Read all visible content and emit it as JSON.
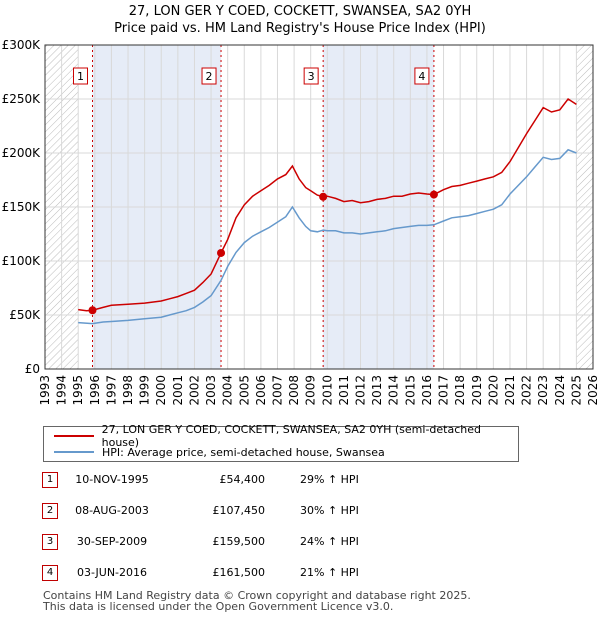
{
  "title_line1": "27, LON GER Y COED, COCKETT, SWANSEA, SA2 0YH",
  "title_line2": "Price paid vs. HM Land Registry's House Price Index (HPI)",
  "legend": {
    "property": "27, LON GER Y COED, COCKETT, SWANSEA, SA2 0YH (semi-detached house)",
    "hpi": "HPI: Average price, semi-detached house, Swansea"
  },
  "colors": {
    "property": "#cc0000",
    "hpi": "#6699cc",
    "sale_marker": "#cc0000",
    "shade": "#e6ecf7",
    "grid": "#d9d9d9"
  },
  "sales": [
    {
      "num": "1",
      "date": "10-NOV-1995",
      "price": "£54,400",
      "delta": "29% ↑ HPI"
    },
    {
      "num": "2",
      "date": "08-AUG-2003",
      "price": "£107,450",
      "delta": "30% ↑ HPI"
    },
    {
      "num": "3",
      "date": "30-SEP-2009",
      "price": "£159,500",
      "delta": "24% ↑ HPI"
    },
    {
      "num": "4",
      "date": "03-JUN-2016",
      "price": "£161,500",
      "delta": "21% ↑ HPI"
    }
  ],
  "footer": {
    "line1": "Contains HM Land Registry data © Crown copyright and database right 2025.",
    "line2": "This data is licensed under the Open Government Licence v3.0."
  },
  "chart_data": {
    "type": "line",
    "title": "27, LON GER Y COED, COCKETT, SWANSEA, SA2 0YH",
    "subtitle": "Price paid vs. HM Land Registry's House Price Index (HPI)",
    "xlabel": "",
    "ylabel": "",
    "xlim": [
      1993,
      2026
    ],
    "ylim": [
      0,
      300000
    ],
    "x_ticks": [
      1993,
      1994,
      1995,
      1996,
      1997,
      1998,
      1999,
      2000,
      2001,
      2002,
      2003,
      2004,
      2005,
      2006,
      2007,
      2008,
      2009,
      2010,
      2011,
      2012,
      2013,
      2014,
      2015,
      2016,
      2017,
      2018,
      2019,
      2020,
      2021,
      2022,
      2023,
      2024,
      2025,
      2026
    ],
    "y_ticks": [
      0,
      50000,
      100000,
      150000,
      200000,
      250000,
      300000
    ],
    "y_tick_labels": [
      "£0",
      "£50K",
      "£100K",
      "£150K",
      "£200K",
      "£250K",
      "£300K"
    ],
    "grid": true,
    "hatched_ranges": [
      [
        1993,
        1995.0
      ],
      [
        2025.0,
        2026
      ]
    ],
    "shaded_ranges": [
      [
        1995.86,
        2003.6
      ],
      [
        2009.75,
        2016.42
      ]
    ],
    "series": [
      {
        "name": "27, LON GER Y COED, COCKETT, SWANSEA, SA2 0YH (semi-detached house)",
        "color": "#cc0000",
        "x": [
          1995.0,
          1995.5,
          1995.86,
          1996.5,
          1997.0,
          1998.0,
          1999.0,
          2000.0,
          2000.5,
          2001.0,
          2001.5,
          2002.0,
          2002.5,
          2003.0,
          2003.6,
          2004.0,
          2004.5,
          2005.0,
          2005.5,
          2006.0,
          2006.5,
          2007.0,
          2007.5,
          2007.9,
          2008.3,
          2008.7,
          2009.0,
          2009.4,
          2009.75,
          2010.0,
          2010.5,
          2011.0,
          2011.5,
          2012.0,
          2012.5,
          2013.0,
          2013.5,
          2014.0,
          2014.5,
          2015.0,
          2015.5,
          2016.0,
          2016.42,
          2017.0,
          2017.5,
          2018.0,
          2018.5,
          2019.0,
          2019.5,
          2020.0,
          2020.5,
          2021.0,
          2021.5,
          2022.0,
          2022.5,
          2023.0,
          2023.5,
          2024.0,
          2024.5,
          2025.0
        ],
        "y": [
          55000,
          54000,
          54400,
          57000,
          59000,
          60000,
          61000,
          63000,
          65000,
          67000,
          70000,
          73000,
          80000,
          88000,
          107450,
          120000,
          140000,
          152000,
          160000,
          165000,
          170000,
          176000,
          180000,
          188000,
          176000,
          168000,
          165000,
          161000,
          159500,
          160000,
          158000,
          155000,
          156000,
          154000,
          155000,
          157000,
          158000,
          160000,
          160000,
          162000,
          163000,
          162000,
          161500,
          166000,
          169000,
          170000,
          172000,
          174000,
          176000,
          178000,
          182000,
          192000,
          205000,
          218000,
          230000,
          242000,
          238000,
          240000,
          250000,
          245000
        ]
      },
      {
        "name": "HPI: Average price, semi-detached house, Swansea",
        "color": "#6699cc",
        "x": [
          1995.0,
          1995.86,
          1996.5,
          1997.0,
          1998.0,
          1999.0,
          2000.0,
          2000.5,
          2001.0,
          2001.5,
          2002.0,
          2002.5,
          2003.0,
          2003.6,
          2004.0,
          2004.5,
          2005.0,
          2005.5,
          2006.0,
          2006.5,
          2007.0,
          2007.5,
          2007.9,
          2008.3,
          2008.7,
          2009.0,
          2009.4,
          2009.75,
          2010.0,
          2010.5,
          2011.0,
          2011.5,
          2012.0,
          2012.5,
          2013.0,
          2013.5,
          2014.0,
          2014.5,
          2015.0,
          2015.5,
          2016.0,
          2016.42,
          2017.0,
          2017.5,
          2018.0,
          2018.5,
          2019.0,
          2019.5,
          2020.0,
          2020.5,
          2021.0,
          2021.5,
          2022.0,
          2022.5,
          2023.0,
          2023.5,
          2024.0,
          2024.5,
          2025.0
        ],
        "y": [
          43000,
          42000,
          43500,
          44000,
          45000,
          46500,
          48000,
          50000,
          52000,
          54000,
          57000,
          62000,
          68000,
          82000,
          95000,
          108000,
          117000,
          123000,
          127000,
          131000,
          136000,
          141000,
          150000,
          140000,
          132000,
          128000,
          127000,
          128500,
          128000,
          128000,
          126000,
          126000,
          125000,
          126000,
          127000,
          128000,
          130000,
          131000,
          132000,
          133000,
          133000,
          133500,
          137000,
          140000,
          141000,
          142000,
          144000,
          146000,
          148000,
          152000,
          162000,
          170000,
          178000,
          187000,
          196000,
          194000,
          195000,
          203000,
          200000
        ]
      }
    ],
    "sale_points": [
      {
        "label": "1",
        "x": 1995.86,
        "y": 54400
      },
      {
        "label": "2",
        "x": 2003.6,
        "y": 107450
      },
      {
        "label": "3",
        "x": 2009.75,
        "y": 159500
      },
      {
        "label": "4",
        "x": 2016.42,
        "y": 161500
      }
    ]
  }
}
